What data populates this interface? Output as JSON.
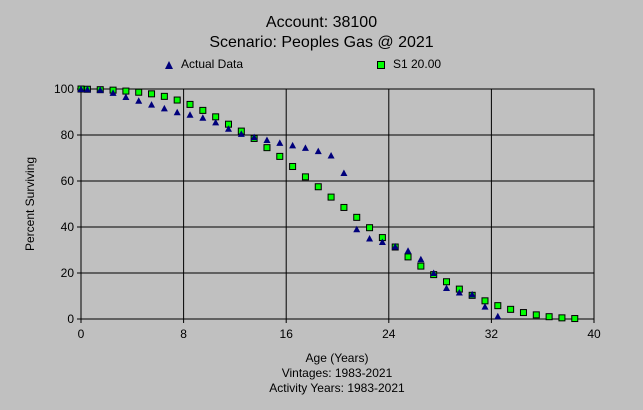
{
  "header": {
    "title": "Account: 38100",
    "subtitle": "Scenario: Peoples Gas @ 2021"
  },
  "footer": {
    "vintages": "Vintages: 1983-2021",
    "activity_years": "Activity Years: 1983-2021"
  },
  "colors": {
    "background": "#c0c0c0",
    "actual": "#00007b",
    "fit_fill": "#00ff00",
    "fit_edge": "#000000",
    "grid": "#000000"
  },
  "chart_data": {
    "type": "scatter",
    "xlabel": "Age (Years)",
    "ylabel": "Percent Surviving",
    "xlim": [
      0,
      40
    ],
    "ylim": [
      0,
      100
    ],
    "xticks": [
      "0",
      "8",
      "16",
      "24",
      "32",
      "40"
    ],
    "yticks": [
      "0",
      "20",
      "40",
      "60",
      "80",
      "100"
    ],
    "grid": true,
    "legend_position": "top",
    "series": [
      {
        "name": "Actual Data",
        "marker": "triangle",
        "points": [
          [
            0,
            100
          ],
          [
            0.5,
            99.9
          ],
          [
            1.5,
            99.6
          ],
          [
            2.5,
            98.3
          ],
          [
            3.5,
            96.5
          ],
          [
            4.5,
            94.9
          ],
          [
            5.5,
            93.2
          ],
          [
            6.5,
            91.6
          ],
          [
            7.5,
            89.9
          ],
          [
            8.5,
            88.8
          ],
          [
            9.5,
            87.5
          ],
          [
            10.5,
            85.5
          ],
          [
            11.5,
            82.7
          ],
          [
            12.5,
            80.5
          ],
          [
            13.5,
            79.1
          ],
          [
            14.5,
            77.8
          ],
          [
            15.5,
            76.6
          ],
          [
            16.5,
            75.5
          ],
          [
            17.5,
            74.4
          ],
          [
            18.5,
            73.0
          ],
          [
            19.5,
            71.1
          ],
          [
            20.5,
            63.5
          ],
          [
            21.5,
            39.0
          ],
          [
            22.5,
            35.0
          ],
          [
            23.5,
            33.5
          ],
          [
            24.5,
            31.5
          ],
          [
            25.5,
            29.7
          ],
          [
            26.5,
            26.0
          ],
          [
            27.5,
            20.0
          ],
          [
            28.5,
            13.5
          ],
          [
            29.5,
            11.5
          ],
          [
            30.5,
            10.7
          ],
          [
            31.5,
            5.4
          ],
          [
            32.5,
            1.2
          ]
        ]
      },
      {
        "name": "S1 20.00",
        "marker": "square",
        "points": [
          [
            0,
            100
          ],
          [
            0.5,
            99.9
          ],
          [
            1.5,
            99.7
          ],
          [
            2.5,
            99.5
          ],
          [
            3.5,
            99.1
          ],
          [
            4.5,
            98.6
          ],
          [
            5.5,
            97.9
          ],
          [
            6.5,
            96.8
          ],
          [
            7.5,
            95.2
          ],
          [
            8.5,
            93.3
          ],
          [
            9.5,
            90.7
          ],
          [
            10.5,
            87.9
          ],
          [
            11.5,
            84.7
          ],
          [
            12.5,
            81.7
          ],
          [
            13.5,
            78.5
          ],
          [
            14.5,
            74.5
          ],
          [
            15.5,
            70.7
          ],
          [
            16.5,
            66.3
          ],
          [
            17.5,
            61.8
          ],
          [
            18.5,
            57.5
          ],
          [
            19.5,
            53.0
          ],
          [
            20.5,
            48.5
          ],
          [
            21.5,
            44.2
          ],
          [
            22.5,
            39.7
          ],
          [
            23.5,
            35.4
          ],
          [
            24.5,
            31.3
          ],
          [
            25.5,
            27.0
          ],
          [
            26.5,
            23.0
          ],
          [
            27.5,
            19.3
          ],
          [
            28.5,
            16.2
          ],
          [
            29.5,
            13.0
          ],
          [
            30.5,
            10.3
          ],
          [
            31.5,
            7.9
          ],
          [
            32.5,
            5.8
          ],
          [
            33.5,
            4.2
          ],
          [
            34.5,
            2.8
          ],
          [
            35.5,
            1.8
          ],
          [
            36.5,
            1.0
          ],
          [
            37.5,
            0.5
          ],
          [
            38.5,
            0.2
          ]
        ]
      }
    ]
  }
}
